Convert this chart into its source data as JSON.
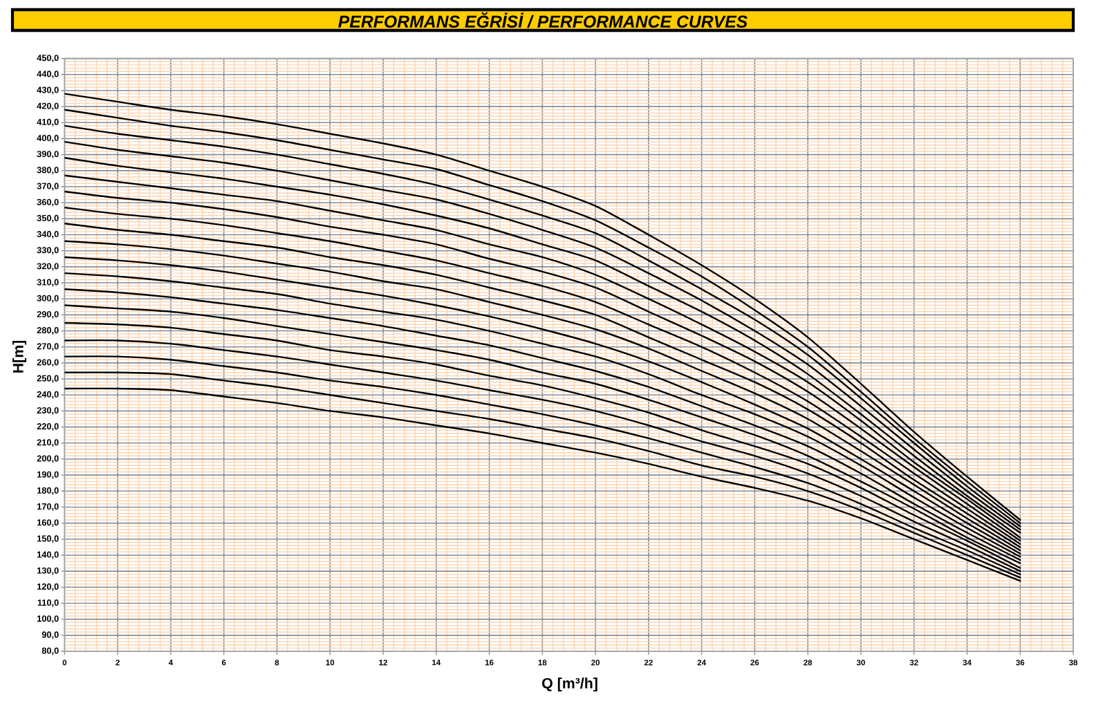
{
  "chart_data": {
    "type": "line",
    "title": "PERFORMANS EĞRİSİ / PERFORMANCE CURVES",
    "xlabel": "Q [m³/h]",
    "ylabel": "H[m]",
    "x": [
      0,
      2,
      4,
      6,
      8,
      10,
      12,
      14,
      16,
      18,
      20,
      22,
      24,
      26,
      28,
      30,
      32,
      34,
      36
    ],
    "series": [
      {
        "color": "#000000",
        "values": [
          428,
          423,
          418,
          414,
          409,
          403,
          397,
          390,
          380,
          370,
          358,
          340,
          321,
          300,
          276,
          247,
          217,
          189,
          162
        ]
      },
      {
        "color": "#000000",
        "values": [
          418,
          413,
          408,
          404,
          399,
          393,
          387,
          381,
          371,
          361,
          349,
          332,
          314,
          293,
          270,
          242,
          213,
          186,
          160
        ]
      },
      {
        "color": "#000000",
        "values": [
          408,
          403,
          399,
          395,
          390,
          384,
          378,
          371,
          362,
          352,
          341,
          324,
          306,
          287,
          265,
          238,
          210,
          183,
          158
        ]
      },
      {
        "color": "#000000",
        "values": [
          398,
          393,
          389,
          385,
          380,
          374,
          368,
          362,
          353,
          343,
          332,
          316,
          299,
          280,
          259,
          233,
          206,
          180,
          156
        ]
      },
      {
        "color": "#000000",
        "values": [
          388,
          383,
          379,
          375,
          370,
          365,
          359,
          352,
          344,
          334,
          324,
          308,
          292,
          274,
          253,
          228,
          202,
          177,
          154
        ]
      },
      {
        "color": "#000000",
        "values": [
          377,
          373,
          369,
          365,
          361,
          355,
          349,
          343,
          334,
          326,
          315,
          300,
          284,
          267,
          248,
          224,
          198,
          175,
          151
        ]
      },
      {
        "color": "#000000",
        "values": [
          367,
          363,
          360,
          356,
          351,
          345,
          340,
          334,
          325,
          317,
          307,
          292,
          277,
          261,
          242,
          219,
          195,
          172,
          149
        ]
      },
      {
        "color": "#000000",
        "values": [
          357,
          353,
          350,
          346,
          341,
          336,
          330,
          324,
          316,
          308,
          298,
          284,
          270,
          254,
          236,
          214,
          191,
          169,
          147
        ]
      },
      {
        "color": "#000000",
        "values": [
          347,
          343,
          340,
          336,
          332,
          326,
          321,
          315,
          307,
          299,
          290,
          276,
          262,
          248,
          231,
          210,
          187,
          166,
          145
        ]
      },
      {
        "color": "#000000",
        "values": [
          336,
          334,
          331,
          327,
          322,
          317,
          311,
          306,
          298,
          290,
          281,
          269,
          255,
          241,
          225,
          205,
          184,
          163,
          143
        ]
      },
      {
        "color": "#000000",
        "values": [
          326,
          324,
          321,
          317,
          312,
          307,
          302,
          296,
          289,
          281,
          272,
          261,
          248,
          234,
          219,
          200,
          180,
          160,
          141
        ]
      },
      {
        "color": "#000000",
        "values": [
          316,
          314,
          311,
          307,
          303,
          297,
          292,
          287,
          280,
          272,
          264,
          253,
          240,
          228,
          214,
          196,
          176,
          157,
          139
        ]
      },
      {
        "color": "#000000",
        "values": [
          306,
          304,
          301,
          297,
          293,
          288,
          283,
          277,
          271,
          263,
          255,
          245,
          233,
          221,
          208,
          191,
          172,
          154,
          137
        ]
      },
      {
        "color": "#000000",
        "values": [
          296,
          294,
          292,
          288,
          283,
          278,
          273,
          268,
          262,
          254,
          247,
          237,
          226,
          215,
          202,
          186,
          169,
          151,
          135
        ]
      },
      {
        "color": "#000000",
        "values": [
          285,
          284,
          282,
          278,
          274,
          268,
          264,
          259,
          252,
          246,
          238,
          229,
          218,
          208,
          197,
          182,
          165,
          149,
          132
        ]
      },
      {
        "color": "#000000",
        "values": [
          274,
          274,
          272,
          268,
          264,
          259,
          254,
          249,
          243,
          237,
          230,
          221,
          211,
          202,
          191,
          177,
          161,
          146,
          130
        ]
      },
      {
        "color": "#000000",
        "values": [
          264,
          264,
          262,
          258,
          254,
          249,
          245,
          240,
          234,
          228,
          221,
          213,
          204,
          195,
          185,
          172,
          157,
          143,
          128
        ]
      },
      {
        "color": "#000000",
        "values": [
          254,
          254,
          253,
          249,
          245,
          240,
          235,
          230,
          225,
          219,
          213,
          205,
          196,
          189,
          180,
          168,
          154,
          140,
          126
        ]
      },
      {
        "color": "#000000",
        "values": [
          244,
          244,
          243,
          239,
          235,
          230,
          226,
          221,
          216,
          210,
          204,
          197,
          189,
          182,
          174,
          163,
          150,
          137,
          124
        ]
      }
    ],
    "xlim": [
      0,
      38
    ],
    "ylim": [
      80,
      450
    ],
    "xticks": [
      0,
      {
        "value": 0.4,
        "label": null
      },
      {
        "value": 0.8,
        "label": null
      },
      {
        "value": 1.2,
        "label": null
      },
      {
        "value": 1.6,
        "label": null
      },
      2,
      {
        "value": 2.4,
        "label": null
      },
      {
        "value": 2.8,
        "label": null
      },
      {
        "value": 3.2,
        "label": null
      },
      {
        "value": 3.6,
        "label": null
      },
      4,
      {
        "value": 4.4,
        "label": null
      },
      {
        "value": 4.8,
        "label": null
      },
      {
        "value": 5.2,
        "label": null
      },
      {
        "value": 5.6,
        "label": null
      },
      6,
      {
        "value": 6.4,
        "label": null
      },
      {
        "value": 6.8,
        "label": null
      },
      {
        "value": 7.2,
        "label": null
      },
      {
        "value": 7.6,
        "label": null
      },
      8,
      {
        "value": 8.4,
        "label": null
      },
      {
        "value": 8.8,
        "label": null
      },
      {
        "value": 9.2,
        "label": null
      },
      {
        "value": 9.6,
        "label": null
      },
      10,
      {
        "value": 10.4,
        "label": null
      },
      {
        "value": 10.8,
        "label": null
      },
      {
        "value": 11.2,
        "label": null
      },
      {
        "value": 11.6,
        "label": null
      },
      12,
      {
        "value": 12.4,
        "label": null
      },
      {
        "value": 12.8,
        "label": null
      },
      {
        "value": 13.2,
        "label": null
      },
      {
        "value": 13.6,
        "label": null
      },
      14,
      {
        "value": 14.4,
        "label": null
      },
      {
        "value": 14.8,
        "label": null
      },
      {
        "value": 15.2,
        "label": null
      },
      {
        "value": 15.6,
        "label": null
      },
      16,
      {
        "value": 16.4,
        "label": null
      },
      {
        "value": 16.8,
        "label": null
      },
      {
        "value": 17.2,
        "label": null
      },
      {
        "value": 17.6,
        "label": null
      },
      18,
      {
        "value": 18.4,
        "label": null
      },
      {
        "value": 18.8,
        "label": null
      },
      {
        "value": 19.2,
        "label": null
      },
      {
        "value": 19.6,
        "label": null
      },
      20,
      {
        "value": 20.4,
        "label": null
      },
      {
        "value": 20.8,
        "label": null
      },
      {
        "value": 21.2,
        "label": null
      },
      {
        "value": 21.6,
        "label": null
      },
      22,
      {
        "value": 22.4,
        "label": null
      },
      {
        "value": 22.8,
        "label": null
      },
      {
        "value": 23.2,
        "label": null
      },
      {
        "value": 23.6,
        "label": null
      },
      24,
      {
        "value": 24.4,
        "label": null
      },
      {
        "value": 24.8,
        "label": null
      },
      {
        "value": 25.2,
        "label": null
      },
      {
        "value": 25.6,
        "label": null
      },
      26,
      {
        "value": 26.4,
        "label": null
      },
      {
        "value": 26.8,
        "label": null
      },
      {
        "value": 27.2,
        "label": null
      },
      {
        "value": 27.6,
        "label": null
      },
      28,
      {
        "value": 28.4,
        "label": null
      },
      {
        "value": 28.8,
        "label": null
      },
      {
        "value": 29.2,
        "label": null
      },
      {
        "value": 29.6,
        "label": null
      },
      30,
      {
        "value": 30.4,
        "label": null
      },
      {
        "value": 30.8,
        "label": null
      },
      {
        "value": 31.2,
        "label": null
      },
      {
        "value": 31.6,
        "label": null
      },
      32,
      {
        "value": 32.4,
        "label": null
      },
      {
        "value": 32.8,
        "label": null
      },
      {
        "value": 33.2,
        "label": null
      },
      {
        "value": 33.6,
        "label": null
      },
      34,
      {
        "value": 34.4,
        "label": null
      },
      {
        "value": 34.8,
        "label": null
      },
      {
        "value": 35.2,
        "label": null
      },
      {
        "value": 35.6,
        "label": null
      },
      36,
      {
        "value": 36.4,
        "label": null
      },
      {
        "value": 36.8,
        "label": null
      },
      {
        "value": 37.2,
        "label": null
      },
      {
        "value": 37.6,
        "label": null
      },
      38
    ],
    "yticks": [
      {
        "value": 80,
        "label": "80,0"
      },
      {
        "value": 82,
        "label": null
      },
      {
        "value": 84,
        "label": null
      },
      {
        "value": 86,
        "label": null
      },
      {
        "value": 88,
        "label": null
      },
      {
        "value": 90,
        "label": "90,0"
      },
      {
        "value": 92,
        "label": null
      },
      {
        "value": 94,
        "label": null
      },
      {
        "value": 96,
        "label": null
      },
      {
        "value": 98,
        "label": null
      },
      {
        "value": 100,
        "label": "100,0"
      },
      {
        "value": 102,
        "label": null
      },
      {
        "value": 104,
        "label": null
      },
      {
        "value": 106,
        "label": null
      },
      {
        "value": 108,
        "label": null
      },
      {
        "value": 110,
        "label": "110,0"
      },
      {
        "value": 112,
        "label": null
      },
      {
        "value": 114,
        "label": null
      },
      {
        "value": 116,
        "label": null
      },
      {
        "value": 118,
        "label": null
      },
      {
        "value": 120,
        "label": "120,0"
      },
      {
        "value": 122,
        "label": null
      },
      {
        "value": 124,
        "label": null
      },
      {
        "value": 126,
        "label": null
      },
      {
        "value": 128,
        "label": null
      },
      {
        "value": 130,
        "label": "130,0"
      },
      {
        "value": 132,
        "label": null
      },
      {
        "value": 134,
        "label": null
      },
      {
        "value": 136,
        "label": null
      },
      {
        "value": 138,
        "label": null
      },
      {
        "value": 140,
        "label": "140,0"
      },
      {
        "value": 142,
        "label": null
      },
      {
        "value": 144,
        "label": null
      },
      {
        "value": 146,
        "label": null
      },
      {
        "value": 148,
        "label": null
      },
      {
        "value": 150,
        "label": "150,0"
      },
      {
        "value": 152,
        "label": null
      },
      {
        "value": 154,
        "label": null
      },
      {
        "value": 156,
        "label": null
      },
      {
        "value": 158,
        "label": null
      },
      {
        "value": 160,
        "label": "160,0"
      },
      {
        "value": 162,
        "label": null
      },
      {
        "value": 164,
        "label": null
      },
      {
        "value": 166,
        "label": null
      },
      {
        "value": 168,
        "label": null
      },
      {
        "value": 170,
        "label": "170,0"
      },
      {
        "value": 172,
        "label": null
      },
      {
        "value": 174,
        "label": null
      },
      {
        "value": 176,
        "label": null
      },
      {
        "value": 178,
        "label": null
      },
      {
        "value": 180,
        "label": "180,0"
      },
      {
        "value": 182,
        "label": null
      },
      {
        "value": 184,
        "label": null
      },
      {
        "value": 186,
        "label": null
      },
      {
        "value": 188,
        "label": null
      },
      {
        "value": 190,
        "label": "190,0"
      },
      {
        "value": 192,
        "label": null
      },
      {
        "value": 194,
        "label": null
      },
      {
        "value": 196,
        "label": null
      },
      {
        "value": 198,
        "label": null
      },
      {
        "value": 200,
        "label": "200,0"
      },
      {
        "value": 202,
        "label": null
      },
      {
        "value": 204,
        "label": null
      },
      {
        "value": 206,
        "label": null
      },
      {
        "value": 208,
        "label": null
      },
      {
        "value": 210,
        "label": "210,0"
      },
      {
        "value": 212,
        "label": null
      },
      {
        "value": 214,
        "label": null
      },
      {
        "value": 216,
        "label": null
      },
      {
        "value": 218,
        "label": null
      },
      {
        "value": 220,
        "label": "220,0"
      },
      {
        "value": 222,
        "label": null
      },
      {
        "value": 224,
        "label": null
      },
      {
        "value": 226,
        "label": null
      },
      {
        "value": 228,
        "label": null
      },
      {
        "value": 230,
        "label": "230,0"
      },
      {
        "value": 232,
        "label": null
      },
      {
        "value": 234,
        "label": null
      },
      {
        "value": 236,
        "label": null
      },
      {
        "value": 238,
        "label": null
      },
      {
        "value": 240,
        "label": "240,0"
      },
      {
        "value": 242,
        "label": null
      },
      {
        "value": 244,
        "label": null
      },
      {
        "value": 246,
        "label": null
      },
      {
        "value": 248,
        "label": null
      },
      {
        "value": 250,
        "label": "250,0"
      },
      {
        "value": 252,
        "label": null
      },
      {
        "value": 254,
        "label": null
      },
      {
        "value": 256,
        "label": null
      },
      {
        "value": 258,
        "label": null
      },
      {
        "value": 260,
        "label": "260,0"
      },
      {
        "value": 262,
        "label": null
      },
      {
        "value": 264,
        "label": null
      },
      {
        "value": 266,
        "label": null
      },
      {
        "value": 268,
        "label": null
      },
      {
        "value": 270,
        "label": "270,0"
      },
      {
        "value": 272,
        "label": null
      },
      {
        "value": 274,
        "label": null
      },
      {
        "value": 276,
        "label": null
      },
      {
        "value": 278,
        "label": null
      },
      {
        "value": 280,
        "label": "280,0"
      },
      {
        "value": 282,
        "label": null
      },
      {
        "value": 284,
        "label": null
      },
      {
        "value": 286,
        "label": null
      },
      {
        "value": 288,
        "label": null
      },
      {
        "value": 290,
        "label": "290,0"
      },
      {
        "value": 292,
        "label": null
      },
      {
        "value": 294,
        "label": null
      },
      {
        "value": 296,
        "label": null
      },
      {
        "value": 298,
        "label": null
      },
      {
        "value": 300,
        "label": "300,0"
      },
      {
        "value": 302,
        "label": null
      },
      {
        "value": 304,
        "label": null
      },
      {
        "value": 306,
        "label": null
      },
      {
        "value": 308,
        "label": null
      },
      {
        "value": 310,
        "label": "310,0"
      },
      {
        "value": 312,
        "label": null
      },
      {
        "value": 314,
        "label": null
      },
      {
        "value": 316,
        "label": null
      },
      {
        "value": 318,
        "label": null
      },
      {
        "value": 320,
        "label": "320,0"
      },
      {
        "value": 322,
        "label": null
      },
      {
        "value": 324,
        "label": null
      },
      {
        "value": 326,
        "label": null
      },
      {
        "value": 328,
        "label": null
      },
      {
        "value": 330,
        "label": "330,0"
      },
      {
        "value": 332,
        "label": null
      },
      {
        "value": 334,
        "label": null
      },
      {
        "value": 336,
        "label": null
      },
      {
        "value": 338,
        "label": null
      },
      {
        "value": 340,
        "label": "340,0"
      },
      {
        "value": 342,
        "label": null
      },
      {
        "value": 344,
        "label": null
      },
      {
        "value": 346,
        "label": null
      },
      {
        "value": 348,
        "label": null
      },
      {
        "value": 350,
        "label": "350,0"
      },
      {
        "value": 352,
        "label": null
      },
      {
        "value": 354,
        "label": null
      },
      {
        "value": 356,
        "label": null
      },
      {
        "value": 358,
        "label": null
      },
      {
        "value": 360,
        "label": "360,0"
      },
      {
        "value": 362,
        "label": null
      },
      {
        "value": 364,
        "label": null
      },
      {
        "value": 366,
        "label": null
      },
      {
        "value": 368,
        "label": null
      },
      {
        "value": 370,
        "label": "370,0"
      },
      {
        "value": 372,
        "label": null
      },
      {
        "value": 374,
        "label": null
      },
      {
        "value": 376,
        "label": null
      },
      {
        "value": 378,
        "label": null
      },
      {
        "value": 380,
        "label": "380,0"
      },
      {
        "value": 382,
        "label": null
      },
      {
        "value": 384,
        "label": null
      },
      {
        "value": 386,
        "label": null
      },
      {
        "value": 388,
        "label": null
      },
      {
        "value": 390,
        "label": "390,0"
      },
      {
        "value": 392,
        "label": null
      },
      {
        "value": 394,
        "label": null
      },
      {
        "value": 396,
        "label": null
      },
      {
        "value": 398,
        "label": null
      },
      {
        "value": 400,
        "label": "400,0"
      },
      {
        "value": 402,
        "label": null
      },
      {
        "value": 404,
        "label": null
      },
      {
        "value": 406,
        "label": null
      },
      {
        "value": 408,
        "label": null
      },
      {
        "value": 410,
        "label": "410,0"
      },
      {
        "value": 412,
        "label": null
      },
      {
        "value": 414,
        "label": null
      },
      {
        "value": 416,
        "label": null
      },
      {
        "value": 418,
        "label": null
      },
      {
        "value": 420,
        "label": "420,0"
      },
      {
        "value": 422,
        "label": null
      },
      {
        "value": 424,
        "label": null
      },
      {
        "value": 426,
        "label": null
      },
      {
        "value": 428,
        "label": null
      },
      {
        "value": 430,
        "label": "430,0"
      },
      {
        "value": 432,
        "label": null
      },
      {
        "value": 434,
        "label": null
      },
      {
        "value": 436,
        "label": null
      },
      {
        "value": 438,
        "label": null
      },
      {
        "value": 440,
        "label": "440,0"
      },
      {
        "value": 442,
        "label": null
      },
      {
        "value": 444,
        "label": null
      },
      {
        "value": 446,
        "label": null
      },
      {
        "value": 448,
        "label": null
      },
      {
        "value": 450,
        "label": "450,0"
      }
    ],
    "grid": true,
    "line_style": "solid"
  }
}
